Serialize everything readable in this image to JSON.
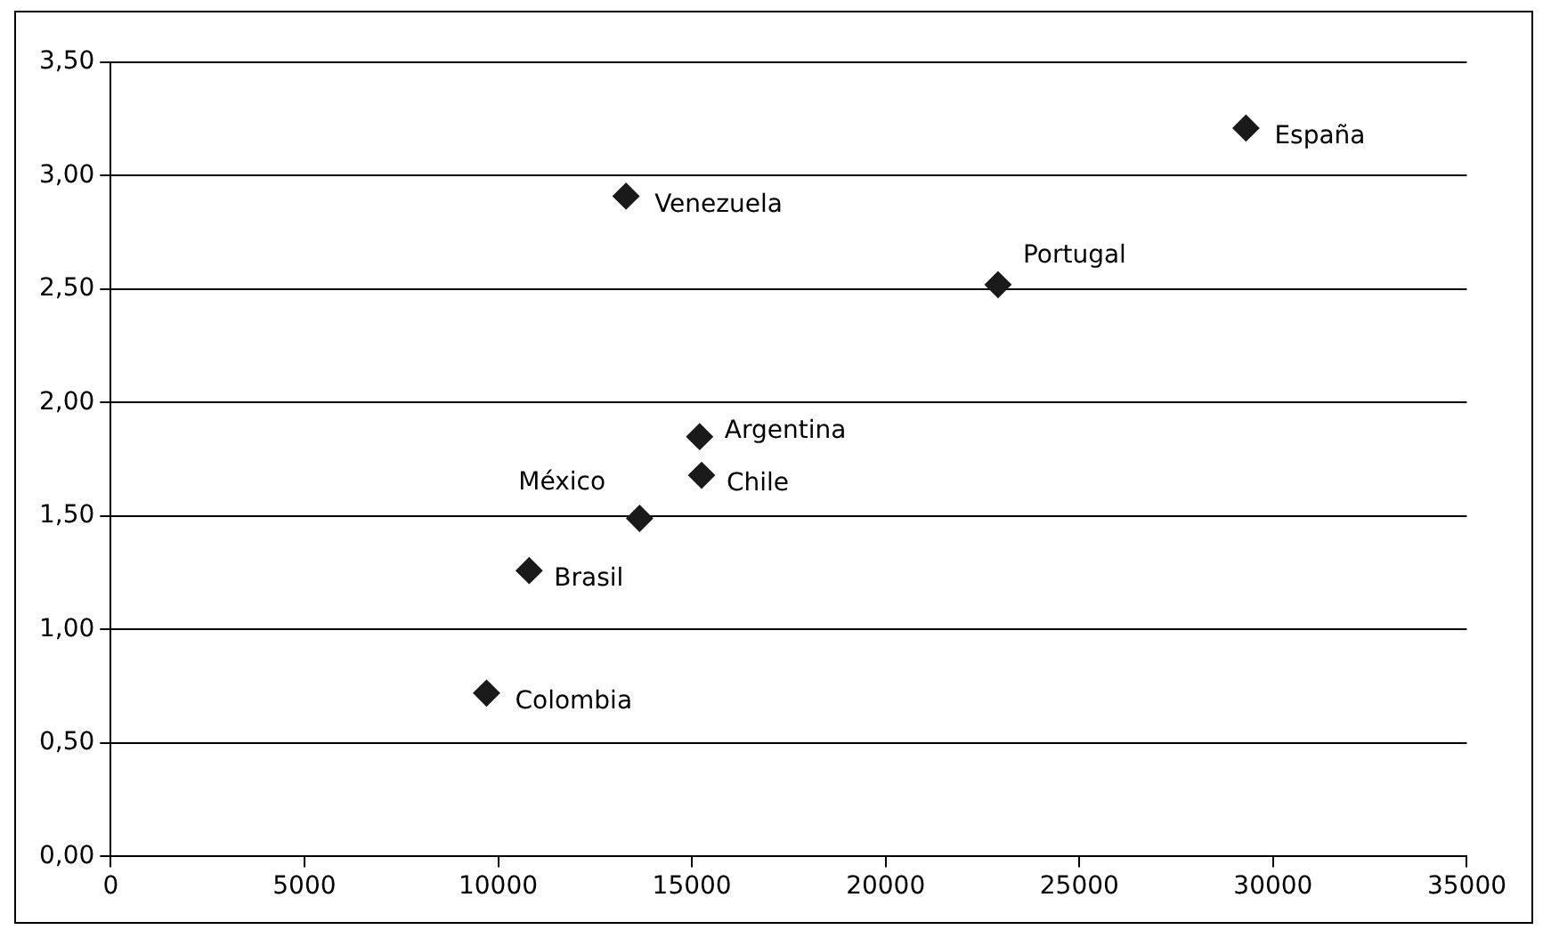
{
  "chart_data": {
    "type": "scatter",
    "x": [
      29300,
      13300,
      22900,
      15200,
      15250,
      13650,
      10800,
      9700
    ],
    "values": [
      3.21,
      2.91,
      2.52,
      1.85,
      1.68,
      1.49,
      1.26,
      0.72
    ],
    "color": "#1a1a1a",
    "marker": "diamond",
    "grid": "y",
    "legend": false,
    "xlim": [
      0,
      35000
    ],
    "xticks": [
      0,
      5000,
      10000,
      15000,
      20000,
      25000,
      30000,
      35000
    ],
    "ylim": [
      0,
      3.5
    ],
    "yticks": [
      {
        "value": 0,
        "label": "0,00"
      },
      {
        "value": 0.5,
        "label": "0,50"
      },
      {
        "value": 1,
        "label": "1,00"
      },
      {
        "value": 1.5,
        "label": "1,50"
      },
      {
        "value": 2,
        "label": "2,00"
      },
      {
        "value": 2.5,
        "label": "2,50"
      },
      {
        "value": 3,
        "label": "3,00"
      },
      {
        "value": 3.5,
        "label": "3,50"
      }
    ],
    "annotations": [
      {
        "text": "España",
        "x": 29300,
        "y": 3.21
      },
      {
        "text": "Venezuela",
        "x": 13300,
        "y": 2.91
      },
      {
        "text": "Portugal",
        "x": 22900,
        "y": 2.52
      },
      {
        "text": "Argentina",
        "x": 15200,
        "y": 1.85
      },
      {
        "text": "Chile",
        "x": 15250,
        "y": 1.68
      },
      {
        "text": "México",
        "x": 13650,
        "y": 1.49
      },
      {
        "text": "Brasil",
        "x": 10800,
        "y": 1.26
      },
      {
        "text": "Colombia",
        "x": 9700,
        "y": 0.72
      }
    ]
  }
}
